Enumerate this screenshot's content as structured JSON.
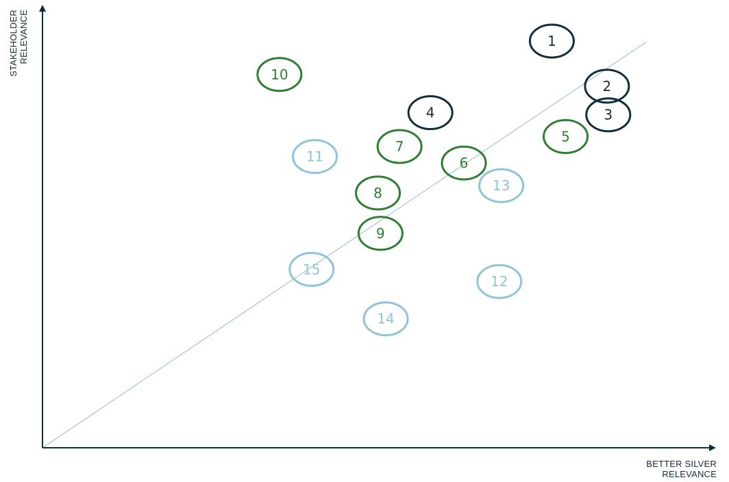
{
  "chart_data": {
    "type": "scatter",
    "xlabel": [
      "BETTER SILVER",
      "RELEVANCE"
    ],
    "ylabel": [
      "STAKEHOLDER",
      "RELEVANCE"
    ],
    "xlim": [
      0,
      100
    ],
    "ylim": [
      0,
      100
    ],
    "grid": false,
    "trend_line": {
      "from": [
        0,
        0
      ],
      "to": [
        92,
        93.5
      ],
      "color": "#a9c3cc"
    },
    "group_colors": {
      "dark": "#0f2d3a",
      "green": "#2e7d32",
      "light": "#8fc3d9"
    },
    "points": [
      {
        "label": "1",
        "x": 77.6,
        "y": 93.7,
        "group": "dark"
      },
      {
        "label": "2",
        "x": 86.0,
        "y": 83.3,
        "group": "dark"
      },
      {
        "label": "3",
        "x": 86.2,
        "y": 76.7,
        "group": "dark"
      },
      {
        "label": "4",
        "x": 59.1,
        "y": 77.2,
        "group": "dark"
      },
      {
        "label": "5",
        "x": 79.7,
        "y": 71.7,
        "group": "green"
      },
      {
        "label": "6",
        "x": 64.2,
        "y": 65.6,
        "group": "green"
      },
      {
        "label": "7",
        "x": 54.4,
        "y": 69.4,
        "group": "green"
      },
      {
        "label": "8",
        "x": 51.1,
        "y": 58.7,
        "group": "green"
      },
      {
        "label": "9",
        "x": 51.5,
        "y": 49.4,
        "group": "green"
      },
      {
        "label": "10",
        "x": 36.1,
        "y": 86.0,
        "group": "green"
      },
      {
        "label": "11",
        "x": 41.5,
        "y": 67.1,
        "group": "light"
      },
      {
        "label": "12",
        "x": 69.6,
        "y": 38.3,
        "group": "light"
      },
      {
        "label": "13",
        "x": 69.9,
        "y": 60.4,
        "group": "light"
      },
      {
        "label": "14",
        "x": 52.3,
        "y": 29.7,
        "group": "light"
      },
      {
        "label": "15",
        "x": 41.0,
        "y": 41.1,
        "group": "light"
      }
    ]
  }
}
